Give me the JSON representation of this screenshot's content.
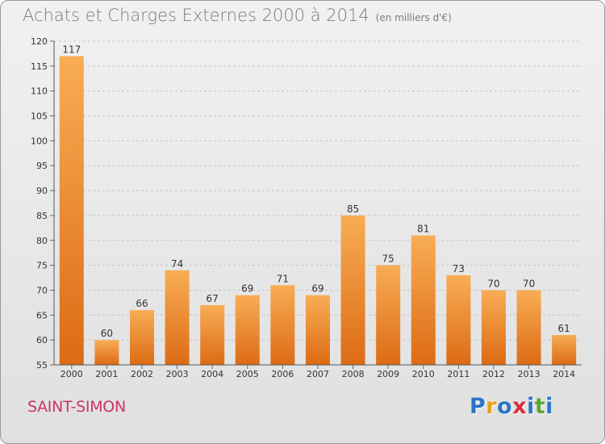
{
  "chart_data": {
    "type": "bar",
    "title": "Achats et Charges Externes 2000 à 2014",
    "subtitle": "(en milliers d'€)",
    "categories": [
      "2000",
      "2001",
      "2002",
      "2003",
      "2004",
      "2005",
      "2006",
      "2007",
      "2008",
      "2009",
      "2010",
      "2011",
      "2012",
      "2013",
      "2014"
    ],
    "values": [
      117,
      60,
      66,
      74,
      67,
      69,
      71,
      69,
      85,
      75,
      81,
      73,
      70,
      70,
      61
    ],
    "ylim": [
      55,
      120
    ],
    "yticks": [
      55,
      60,
      65,
      70,
      75,
      80,
      85,
      90,
      95,
      100,
      105,
      110,
      115,
      120
    ],
    "grid": true,
    "bar_color": "#ee8a2c"
  },
  "location": "SAINT-SIMON",
  "logo": {
    "letters": [
      "P",
      "r",
      "o",
      "x",
      "i",
      "t",
      "i"
    ],
    "colors": [
      "#2b74c7",
      "#e8a21a",
      "#2b74c7",
      "#d92f3a",
      "#2b74c7",
      "#58a82f",
      "#2b74c7"
    ]
  }
}
